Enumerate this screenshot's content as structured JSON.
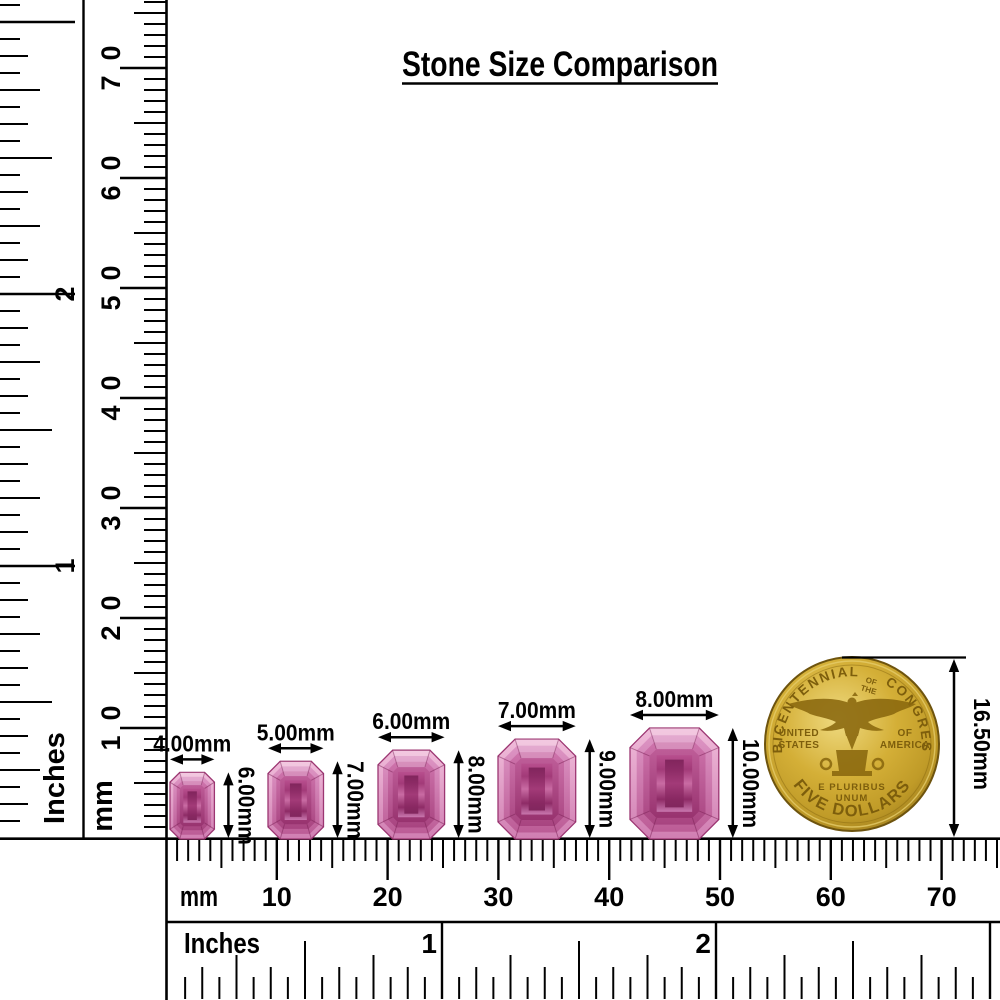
{
  "title": "Stone Size Comparison",
  "colors": {
    "ink": "#000000",
    "stone_light": "#F0BCDA",
    "stone_mid": "#C9679F",
    "stone_deep": "#8E2B63",
    "coin_gold": "#D4AF37",
    "coin_text": "#7D5E0C"
  },
  "rulers": {
    "left_inches": {
      "unit_label": "Inches",
      "numbers": [
        "1",
        "2"
      ]
    },
    "left_mm": {
      "unit_label": "mm",
      "numbers": [
        "10",
        "20",
        "30",
        "40",
        "50",
        "60",
        "70"
      ]
    },
    "bottom_mm": {
      "unit_label": "mm",
      "numbers": [
        "10",
        "20",
        "30",
        "40",
        "50",
        "60",
        "70"
      ]
    },
    "bottom_inches": {
      "unit_label": "Inches",
      "numbers": [
        "1",
        "2"
      ]
    }
  },
  "stones": [
    {
      "width_label": "4.00mm",
      "height_label": "6.00mm",
      "width_mm": 4,
      "height_mm": 6
    },
    {
      "width_label": "5.00mm",
      "height_label": "7.00mm",
      "width_mm": 5,
      "height_mm": 7
    },
    {
      "width_label": "6.00mm",
      "height_label": "8.00mm",
      "width_mm": 6,
      "height_mm": 8
    },
    {
      "width_label": "7.00mm",
      "height_label": "9.00mm",
      "width_mm": 7,
      "height_mm": 9
    },
    {
      "width_label": "8.00mm",
      "height_label": "10.00mm",
      "width_mm": 8,
      "height_mm": 10
    }
  ],
  "coin": {
    "diameter_label": "16.50mm",
    "legend_top_left": "BICENTENNIAL",
    "legend_top_center_line1": "OF",
    "legend_top_center_line2": "THE",
    "legend_top_right": "CONGRESS",
    "left_line1": "UNITED",
    "left_line2": "STATES",
    "right_line1": "OF",
    "right_line2": "AMERICA",
    "motto_line1": "E PLURIBUS",
    "motto_line2": "UNUM",
    "legend_bottom": "FIVE DOLLARS"
  }
}
